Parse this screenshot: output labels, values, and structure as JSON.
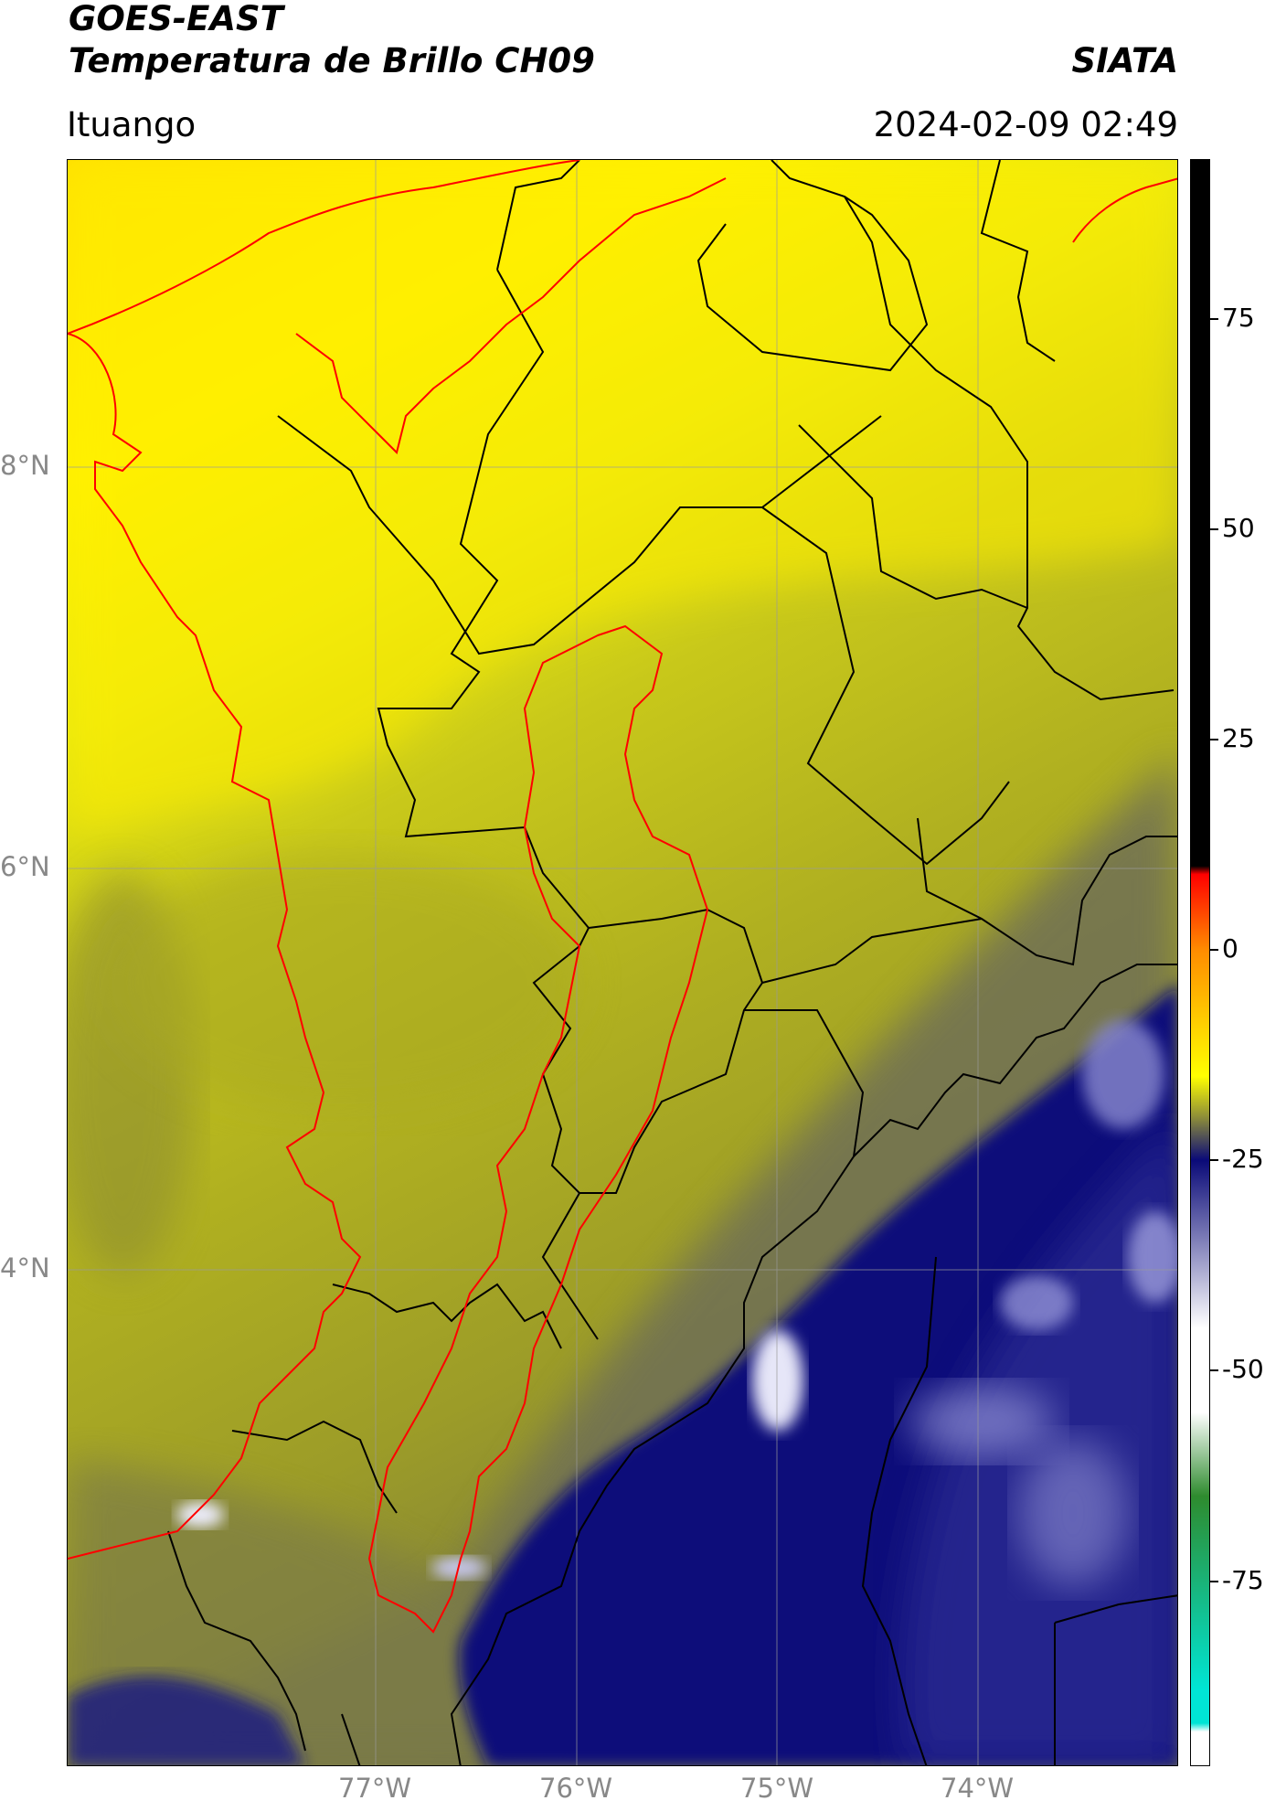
{
  "header": {
    "title_line1": "GOES-EAST",
    "title_line2": "Temperatura de Brillo CH09",
    "brand": "SIATA",
    "location": "Ituango",
    "datetime": "2024-02-09 02:49"
  },
  "map": {
    "lat_labels": [
      "8°N",
      "6°N",
      "4°N"
    ],
    "lon_labels": [
      "77°W",
      "76°W",
      "75°W",
      "74°W"
    ]
  },
  "colorbar": {
    "ticks": [
      "75",
      "50",
      "25",
      "0",
      "-25",
      "-50",
      "-75"
    ],
    "tick_values": [
      75,
      50,
      25,
      0,
      -25,
      -50,
      -75
    ],
    "range": [
      -97,
      94
    ],
    "colors": {
      "warm_black": "#000000",
      "red": "#ff0000",
      "orange": "#ff8c00",
      "yellow": "#ffff00",
      "olive": "#8a8a3a",
      "navy": "#0a0a78",
      "white": "#ffffff",
      "green": "#2e8b2e",
      "cyan": "#00e5d5"
    }
  }
}
